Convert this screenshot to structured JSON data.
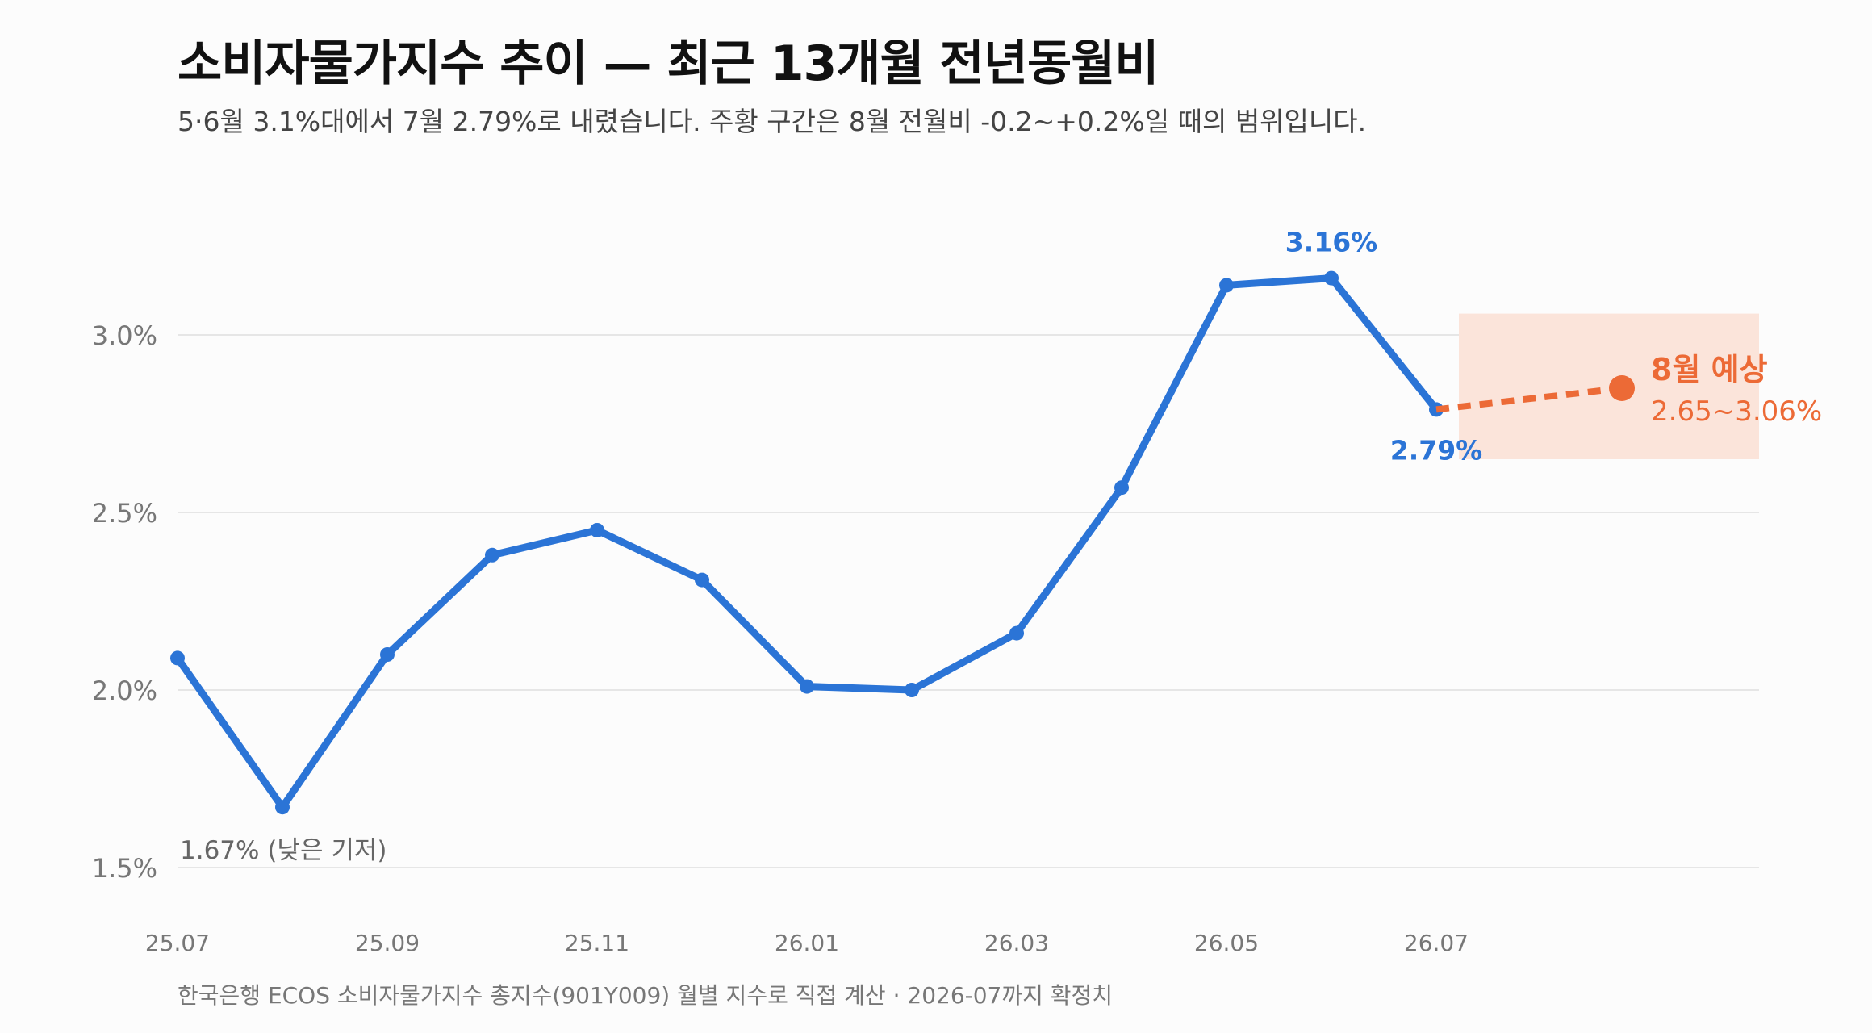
{
  "title": "소비자물가지수 추이 — 최근 13개월 전년동월비",
  "subtitle": "5·6월 3.1%대에서 7월 2.79%로 내렸습니다. 주황 구간은 8월 전월비 -0.2~+0.2%일 때의 범위입니다.",
  "footer": "한국은행 ECOS 소비자물가지수 총지수(901Y009) 월별 지수로 직접 계산 · 2026-07까지 확정치",
  "colors": {
    "line": "#2b74d6",
    "forecast": "#ec6a36",
    "band": "#fbe4da",
    "grid": "#e6e6e6",
    "axis_text": "#777777",
    "annotation_gray": "#666666"
  },
  "chart_data": {
    "type": "line",
    "x": [
      "25.07",
      "25.08",
      "25.09",
      "25.10",
      "25.11",
      "25.12",
      "26.01",
      "26.02",
      "26.03",
      "26.04",
      "26.05",
      "26.06",
      "26.07"
    ],
    "xtick_labels": [
      "25.07",
      "25.09",
      "25.11",
      "26.01",
      "26.03",
      "26.05",
      "26.07"
    ],
    "series": [
      {
        "values": [
          2.09,
          1.67,
          2.1,
          2.38,
          2.45,
          2.31,
          2.01,
          2.0,
          2.16,
          2.57,
          3.14,
          3.16,
          2.79
        ]
      }
    ],
    "forecast": {
      "label": "8월 예상",
      "x": "26.08",
      "value": 2.85,
      "low": 2.65,
      "high": 3.06,
      "range_label": "2.65~3.06%"
    },
    "annotations": [
      {
        "x": "25.08",
        "text": "1.67% (낮은 기저)"
      },
      {
        "x": "26.06",
        "text": "3.16%"
      },
      {
        "x": "26.07",
        "text": "2.79%"
      }
    ],
    "yticks": [
      "1.5%",
      "2.0%",
      "2.5%",
      "3.0%"
    ],
    "ytick_values": [
      1.5,
      2.0,
      2.5,
      3.0
    ],
    "ylim": [
      1.4,
      3.4
    ],
    "grid": true
  }
}
